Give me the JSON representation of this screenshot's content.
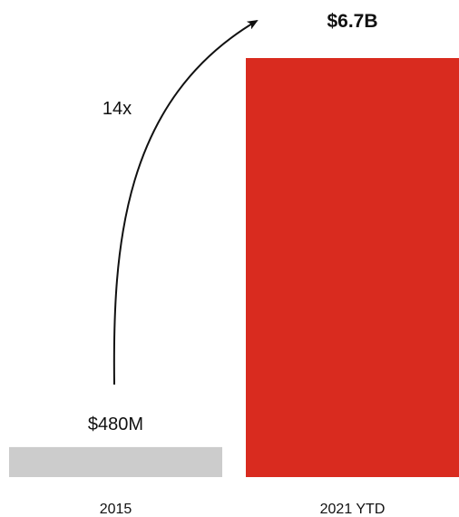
{
  "chart_data": {
    "type": "bar",
    "title": "",
    "xlabel": "",
    "ylabel": "",
    "categories": [
      "2015",
      "2021 YTD"
    ],
    "values": [
      0.48,
      6.7
    ],
    "value_unit": "billion USD",
    "value_labels": [
      "$480M",
      "$6.7B"
    ],
    "value_label_bold": [
      false,
      true
    ],
    "colors": [
      "#cccccc",
      "#d92b1f"
    ],
    "annotation": {
      "text": "14x",
      "type": "curved-arrow",
      "from_category": "2015",
      "to_category": "2021 YTD"
    },
    "ylim": [
      0,
      6.7
    ],
    "grid": false,
    "legend": "none"
  }
}
